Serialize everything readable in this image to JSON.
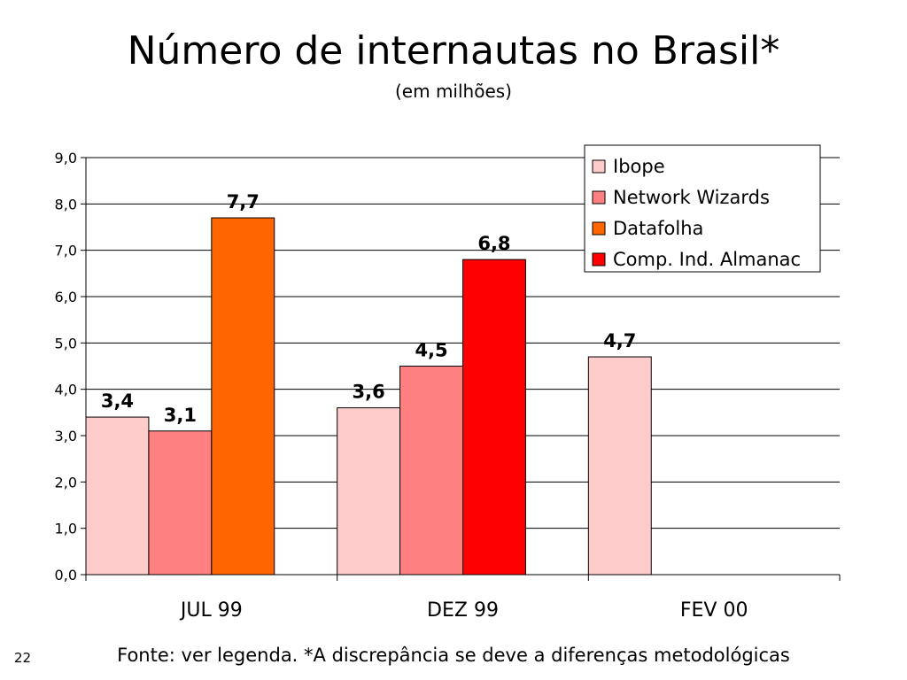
{
  "slide": {
    "title": "Número de internautas no Brasil*",
    "subtitle": "(em milhões)",
    "footer": "Fonte: ver legenda. *A discrepância se deve a diferenças metodológicas",
    "page_number": "22"
  },
  "chart_data": {
    "type": "bar",
    "title": "",
    "xlabel": "",
    "ylabel": "",
    "ylim": [
      0,
      9
    ],
    "ytick_labels": [
      "0,0",
      "1,0",
      "2,0",
      "3,0",
      "4,0",
      "5,0",
      "6,0",
      "7,0",
      "8,0",
      "9,0"
    ],
    "categories": [
      "JUL 99",
      "DEZ 99",
      "FEV 00"
    ],
    "grid": true,
    "legend_position": "top-right",
    "series": [
      {
        "name": "Ibope",
        "color": "#FFCCCC",
        "values": [
          3.4,
          3.6,
          4.7
        ],
        "labels": [
          "3,4",
          "3,6",
          "4,7"
        ]
      },
      {
        "name": "Network Wizards",
        "color": "#FF8080",
        "values": [
          3.1,
          4.5,
          null
        ],
        "labels": [
          "3,1",
          "4,5",
          null
        ]
      },
      {
        "name": "Datafolha",
        "color": "#FF6600",
        "values": [
          7.7,
          null,
          null
        ],
        "labels": [
          "7,7",
          null,
          null
        ]
      },
      {
        "name": "Comp. Ind. Almanac",
        "color": "#FF0000",
        "values": [
          null,
          6.8,
          null
        ],
        "labels": [
          null,
          "6,8",
          null
        ]
      }
    ]
  }
}
